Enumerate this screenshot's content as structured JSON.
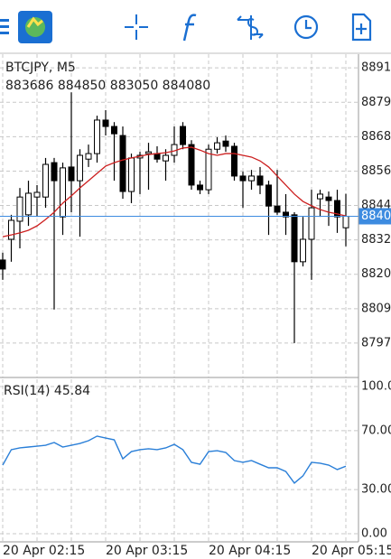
{
  "chart_data": [
    {
      "type": "candlestick",
      "title": "BTCJPY, M5",
      "ohlc_text": "883686 884850 883050 884080",
      "categories": [
        "20 Apr 02:15",
        null,
        null,
        null,
        null,
        null,
        null,
        null,
        null,
        null,
        null,
        null,
        "20 Apr 03:15",
        null,
        null,
        null,
        null,
        null,
        null,
        null,
        null,
        null,
        null,
        null,
        "20 Apr 04:15",
        null,
        null,
        null,
        null,
        null,
        null,
        null,
        null,
        null,
        null,
        null,
        "20 Apr 05:15",
        null,
        null,
        null,
        null
      ],
      "open": [
        882580,
        883290,
        883910,
        884130,
        884740,
        884740,
        885920,
        884060,
        885770,
        885300,
        886040,
        886230,
        887380,
        887160,
        886850,
        884930,
        886080,
        886230,
        886230,
        885980,
        886170,
        887160,
        886540,
        885150,
        884990,
        886380,
        886660,
        886480,
        885460,
        885300,
        885460,
        885150,
        884430,
        884220,
        884130,
        882520,
        883290,
        884680,
        884740,
        884620,
        883686
      ],
      "high": [
        882830,
        884130,
        885050,
        885300,
        885150,
        886080,
        886080,
        885920,
        888330,
        886380,
        886540,
        887530,
        887720,
        887310,
        887160,
        886230,
        886290,
        886600,
        886480,
        886380,
        887160,
        887310,
        886690,
        885300,
        886540,
        886790,
        886850,
        886600,
        885610,
        885670,
        885770,
        885300,
        885670,
        884840,
        884220,
        884060,
        884990,
        884990,
        884930,
        884990,
        884850
      ],
      "low": [
        881900,
        882520,
        882980,
        883750,
        884060,
        884370,
        880880,
        883440,
        884220,
        883380,
        885770,
        885920,
        886850,
        885300,
        884680,
        884530,
        884840,
        884990,
        885920,
        885300,
        885920,
        886380,
        884990,
        884840,
        884840,
        886230,
        886290,
        885300,
        884370,
        884990,
        884840,
        883440,
        884130,
        883440,
        879730,
        882360,
        881900,
        884060,
        883750,
        883510,
        883050
      ],
      "close": [
        882270,
        883940,
        884740,
        884870,
        884900,
        885860,
        885300,
        885740,
        885300,
        886170,
        886230,
        887380,
        887160,
        886910,
        884930,
        886080,
        886170,
        886290,
        886040,
        886170,
        886540,
        886540,
        885150,
        884990,
        886380,
        886600,
        886480,
        885460,
        885300,
        885460,
        885150,
        884430,
        884220,
        884060,
        882520,
        883290,
        884370,
        884840,
        884620,
        884060,
        884080
      ],
      "up_color": "#ffffff",
      "down_color": "#000000",
      "wick_color": "#000000",
      "overlay": {
        "color": "#cc1f1f",
        "values": [
          883380,
          883440,
          883510,
          883600,
          883750,
          883970,
          884220,
          884530,
          884780,
          885050,
          885300,
          885550,
          885800,
          885920,
          886010,
          886080,
          886140,
          886200,
          886230,
          886260,
          886320,
          886420,
          886450,
          886350,
          886230,
          886170,
          886230,
          886230,
          886170,
          886110,
          885980,
          885770,
          885460,
          885150,
          884840,
          884590,
          884440,
          884310,
          884220,
          884160,
          884090
        ]
      },
      "current_price": {
        "value": 884080,
        "label": "8840",
        "color": "#3d8be0"
      },
      "ylim": [
        878550,
        889640
      ],
      "yticks": [
        {
          "value": 889170,
          "label": "8891"
        },
        {
          "value": 887990,
          "label": "8879"
        },
        {
          "value": 886810,
          "label": "8868"
        },
        {
          "value": 885630,
          "label": "8856"
        },
        {
          "value": 884450,
          "label": "8844"
        },
        {
          "value": 883270,
          "label": "8832"
        },
        {
          "value": 882090,
          "label": "8820"
        },
        {
          "value": 880910,
          "label": "8809"
        },
        {
          "value": 879730,
          "label": "8797"
        }
      ],
      "grid": true
    },
    {
      "type": "line",
      "title": "RSI(14) 45.84",
      "color": "#2a7fd8",
      "values": [
        46.6,
        57.1,
        58.3,
        58.9,
        59.5,
        60.1,
        62.0,
        58.9,
        60.1,
        61.3,
        63.2,
        66.3,
        65.0,
        63.8,
        50.9,
        55.8,
        57.1,
        57.7,
        57.1,
        58.3,
        60.7,
        57.1,
        48.5,
        47.2,
        55.8,
        56.4,
        55.2,
        49.7,
        48.5,
        49.7,
        47.2,
        44.8,
        44.8,
        42.3,
        34.4,
        39.3,
        48.5,
        47.9,
        46.6,
        43.6,
        45.84
      ],
      "ylim": [
        -5.5,
        104.9
      ],
      "yticks": [
        {
          "value": 100,
          "label": "100.00"
        },
        {
          "value": 70,
          "label": "70.00"
        },
        {
          "value": 30,
          "label": "30.00"
        },
        {
          "value": 0,
          "label": "0.00"
        }
      ],
      "grid": true
    }
  ]
}
